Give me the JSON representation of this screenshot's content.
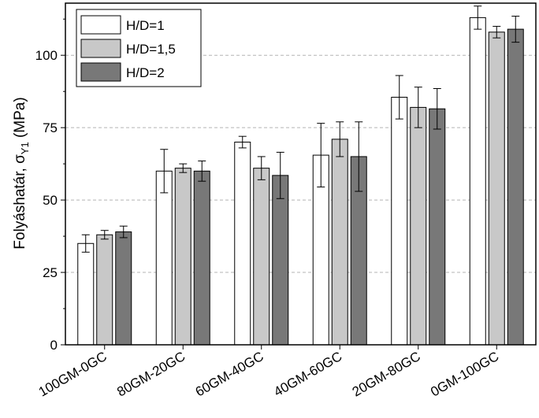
{
  "chart_data": {
    "type": "bar",
    "title": "",
    "xlabel": "",
    "ylabel": "Folyáshatár, σY1 (MPa)",
    "ylabel_main": "Folyáshatár, σ",
    "ylabel_sub": "Y1",
    "ylabel_unit": " (MPa)",
    "ylim": [
      0,
      118
    ],
    "yticks": [
      0,
      25,
      50,
      75,
      100
    ],
    "grid": "horizontal dashed",
    "legend_position": "top-left",
    "categories": [
      "100GM-0GC",
      "80GM-20GC",
      "60GM-40GC",
      "40GM-60GC",
      "20GM-80GC",
      "0GM-100GC"
    ],
    "series": [
      {
        "name": "H/D=1",
        "color": "#ffffff",
        "values": [
          35,
          60,
          70,
          65.5,
          85.5,
          113
        ],
        "errors": [
          3,
          7.5,
          2,
          11,
          7.5,
          4
        ]
      },
      {
        "name": "H/D=1,5",
        "color": "#c8c8c8",
        "values": [
          38,
          61,
          61,
          71,
          82,
          108
        ],
        "errors": [
          1.5,
          1.5,
          4,
          6,
          7,
          2
        ]
      },
      {
        "name": "H/D=2",
        "color": "#787878",
        "values": [
          39,
          60,
          58.5,
          65,
          81.5,
          109
        ],
        "errors": [
          2,
          3.5,
          8,
          12,
          7,
          4.5
        ]
      }
    ]
  }
}
